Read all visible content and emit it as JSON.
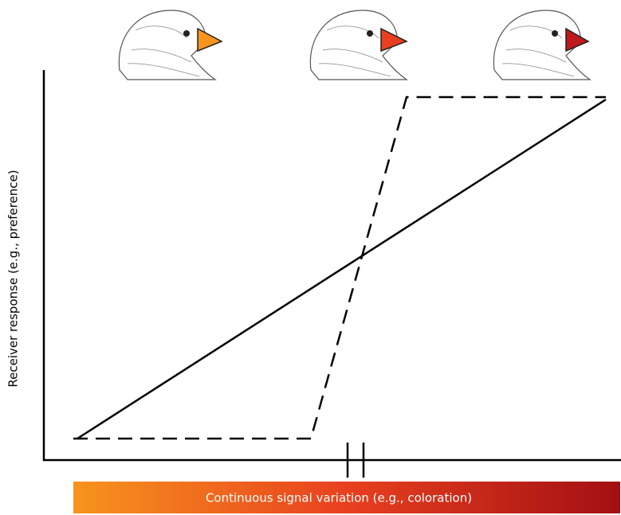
{
  "axes": {
    "y_label": "Receiver response (e.g., preference)",
    "x_label": "Continuous signal variation (e.g., coloration)"
  }
}
